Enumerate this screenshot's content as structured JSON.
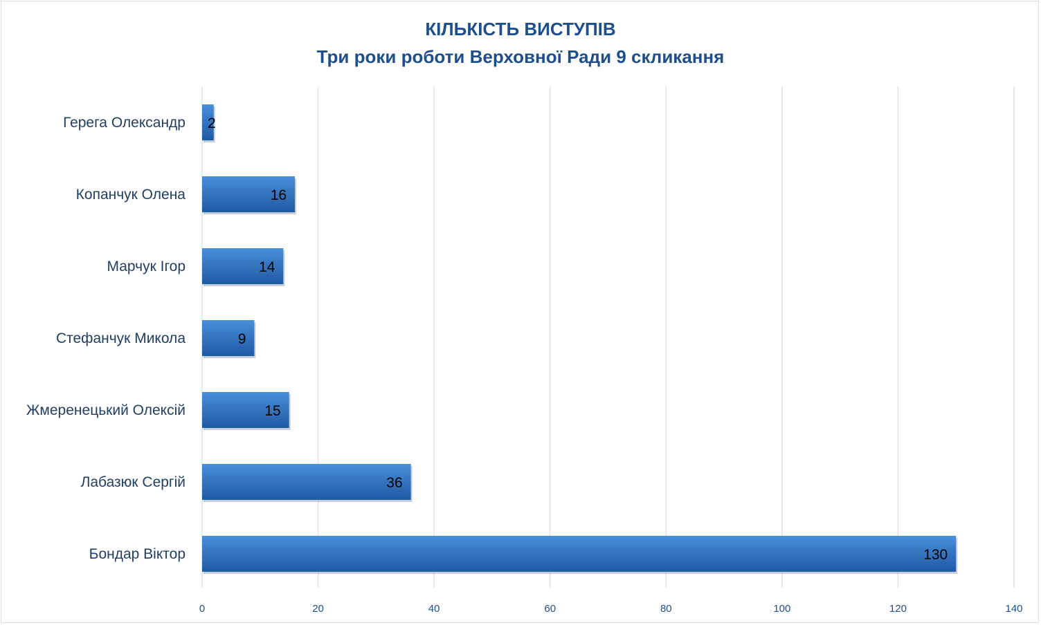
{
  "chart_data": {
    "type": "bar",
    "orientation": "horizontal",
    "title": "КІЛЬКІСТЬ ВИСТУПІВ",
    "subtitle": "Три роки роботи Верховної Ради 9 скликання",
    "categories": [
      "Герега Олександр",
      "Копанчук Олена",
      "Марчук Ігор",
      "Стефанчук Микола",
      "Жмеренецький Олексій",
      "Лабазюк Сергій",
      "Бондар Віктор"
    ],
    "values": [
      2,
      16,
      14,
      9,
      15,
      36,
      130
    ],
    "data_labels": [
      "2",
      "16",
      "14",
      "9",
      "15",
      "36",
      "130"
    ],
    "xlim": [
      0,
      140
    ],
    "x_ticks": [
      0,
      20,
      40,
      60,
      80,
      100,
      120,
      140
    ],
    "x_tick_labels": [
      "0",
      "20",
      "40",
      "60",
      "80",
      "100",
      "120",
      "140"
    ],
    "grid": true,
    "legend": "none",
    "colors": {
      "bar_top": "#4a8ed8",
      "bar_bottom": "#1f5aa6",
      "grid": "#d9e2ee",
      "title": "#1f4e8c"
    }
  }
}
